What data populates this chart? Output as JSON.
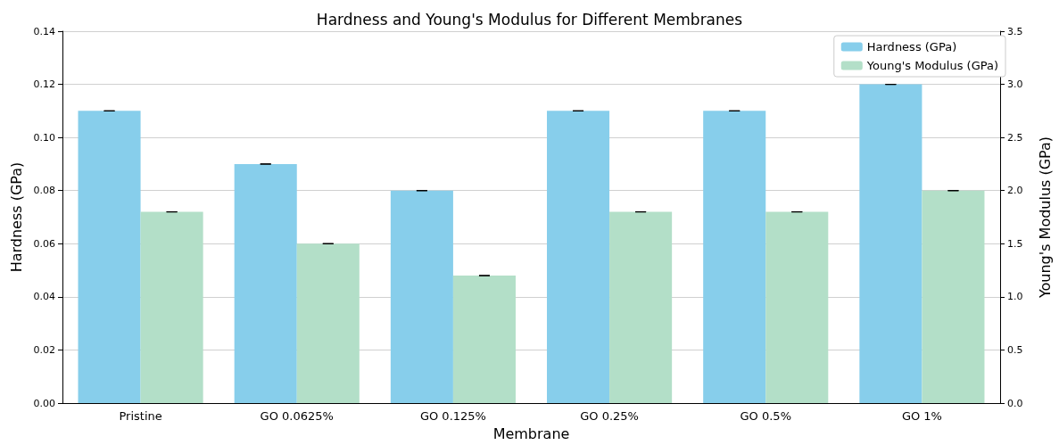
{
  "chart_data": {
    "type": "bar",
    "title": "Hardness and Young's Modulus for Different Membranes",
    "xlabel": "Membrane",
    "ylabel": "Hardness (GPa)",
    "y2label": "Young's Modulus (GPa)",
    "categories": [
      "Pristine",
      "GO 0.0625%",
      "GO 0.125%",
      "GO 0.25%",
      "GO 0.5%",
      "GO 1%"
    ],
    "series": [
      {
        "name": "Hardness (GPa)",
        "color": "#87ceeb",
        "values": [
          0.11,
          0.09,
          0.08,
          0.11,
          0.11,
          0.12
        ],
        "errors": [
          0,
          0,
          0,
          0,
          0,
          0
        ]
      },
      {
        "name": "Young's Modulus (GPa)",
        "color": "#b3dfc8",
        "axis": "y2",
        "values": [
          1.8,
          1.5,
          1.2,
          1.8,
          1.8,
          2.0
        ],
        "errors": [
          0,
          0,
          0,
          0,
          0,
          0
        ]
      }
    ],
    "ylim": [
      0,
      0.14
    ],
    "yticks": [
      {
        "value": 0,
        "label": "0.00"
      },
      {
        "value": 0.02,
        "label": "0.02"
      },
      {
        "value": 0.04,
        "label": "0.04"
      },
      {
        "value": 0.06,
        "label": "0.06"
      },
      {
        "value": 0.08,
        "label": "0.08"
      },
      {
        "value": 0.1,
        "label": "0.10"
      },
      {
        "value": 0.12,
        "label": "0.12"
      },
      {
        "value": 0.14,
        "label": "0.14"
      }
    ],
    "y2lim": [
      0,
      3.5
    ],
    "y2ticks": [
      {
        "value": 0,
        "label": "0.0"
      },
      {
        "value": 0.5,
        "label": "0.5"
      },
      {
        "value": 1,
        "label": "1.0"
      },
      {
        "value": 1.5,
        "label": "1.5"
      },
      {
        "value": 2,
        "label": "2.0"
      },
      {
        "value": 2.5,
        "label": "2.5"
      },
      {
        "value": 3,
        "label": "3.0"
      },
      {
        "value": 3.5,
        "label": "3.5"
      }
    ],
    "grid": "y",
    "legend": "top right"
  }
}
